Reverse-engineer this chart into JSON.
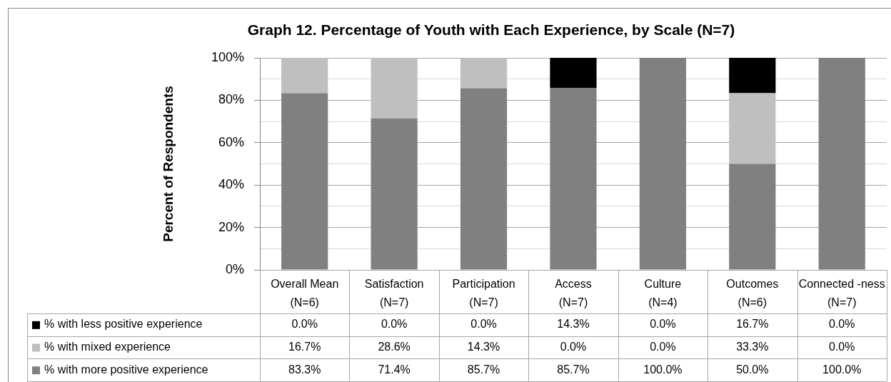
{
  "chart_data": {
    "type": "bar",
    "title": "Graph 12. Percentage of Youth with Each Experience, by Scale (N=7)",
    "ylabel": "Percent of Respondents",
    "categories": [
      "Overall Mean (N=6)",
      "Satisfaction (N=7)",
      "Participation (N=7)",
      "Access (N=7)",
      "Culture (N=4)",
      "Outcomes (N=6)",
      "Connected -ness (N=7)"
    ],
    "series": [
      {
        "name": "% with more positive experience",
        "color": "#808080",
        "values": [
          83.3,
          71.4,
          85.7,
          85.7,
          100.0,
          50.0,
          100.0
        ],
        "value_labels": [
          "83.3%",
          "71.4%",
          "85.7%",
          "85.7%",
          "100.0%",
          "50.0%",
          "100.0%"
        ]
      },
      {
        "name": "% with mixed experience",
        "color": "#bfbfbf",
        "values": [
          16.7,
          28.6,
          14.3,
          0.0,
          0.0,
          33.3,
          0.0
        ],
        "value_labels": [
          "16.7%",
          "28.6%",
          "14.3%",
          "0.0%",
          "0.0%",
          "33.3%",
          "0.0%"
        ]
      },
      {
        "name": "% with less positive experience",
        "color": "#000000",
        "values": [
          0.0,
          0.0,
          0.0,
          14.3,
          0.0,
          16.7,
          0.0
        ],
        "value_labels": [
          "0.0%",
          "0.0%",
          "0.0%",
          "14.3%",
          "0.0%",
          "16.7%",
          "0.0%"
        ]
      }
    ],
    "stacked": true,
    "ylim": [
      0,
      100
    ],
    "yticks": [
      {
        "value": 0,
        "label": "0%"
      },
      {
        "value": 10,
        "label": null
      },
      {
        "value": 20,
        "label": "20%"
      },
      {
        "value": 30,
        "label": null
      },
      {
        "value": 40,
        "label": "40%"
      },
      {
        "value": 50,
        "label": null
      },
      {
        "value": 60,
        "label": "60%"
      },
      {
        "value": 70,
        "label": null
      },
      {
        "value": 80,
        "label": "80%"
      },
      {
        "value": 90,
        "label": null
      },
      {
        "value": 100,
        "label": "100%"
      }
    ],
    "grid": "y",
    "legend": "bottom"
  }
}
